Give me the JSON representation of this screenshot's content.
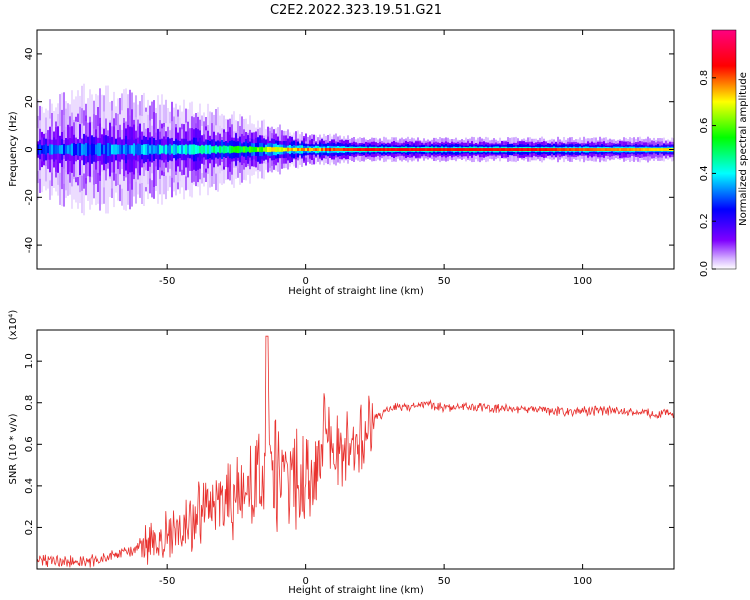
{
  "title": "C2E2.2022.323.19.51.G21",
  "chart_data": [
    {
      "type": "heatmap",
      "xlabel": "Height of straight line (km)",
      "ylabel": "Frequency (Hz)",
      "xlim": [
        -97,
        133
      ],
      "ylim": [
        -50,
        50
      ],
      "xticks": [
        -50,
        0,
        50,
        100
      ],
      "yticks": [
        -40,
        -20,
        0,
        20,
        40
      ],
      "colorbar": {
        "label": "Normalized spectral amplitude",
        "range": [
          0.0,
          1.0
        ],
        "ticks": [
          "0.0",
          "0.2",
          "0.4",
          "0.6",
          "0.8"
        ],
        "colors": [
          "#ffffff",
          "#7f00ff",
          "#0000ff",
          "#00ffff",
          "#00ff00",
          "#ffff00",
          "#ff0000",
          "#ff0080"
        ]
      },
      "ridge": {
        "x": [
          -95,
          -80,
          -60,
          -40,
          -20,
          -10,
          0,
          10,
          20,
          40,
          60,
          80,
          100,
          120,
          133
        ],
        "peak_frequency": [
          0,
          0,
          0,
          0,
          0,
          0,
          0,
          0,
          0,
          0,
          0,
          0,
          0,
          0,
          0
        ],
        "amplitude": [
          0.3,
          0.3,
          0.35,
          0.4,
          0.55,
          0.7,
          0.75,
          0.8,
          0.85,
          0.85,
          0.85,
          0.85,
          0.8,
          0.75,
          0.7
        ],
        "spread_hz": [
          6,
          8,
          7,
          6,
          4,
          3,
          2,
          2,
          1.5,
          1.5,
          1.5,
          1.5,
          1.5,
          1.5,
          1.5
        ]
      }
    },
    {
      "type": "line",
      "xlabel": "Height of straight line (km)",
      "ylabel": "SNR (10 * v/v)",
      "multiplier": "(x10⁴)",
      "xlim": [
        -97,
        133
      ],
      "ylim": [
        0,
        1.15
      ],
      "xticks": [
        -50,
        0,
        50,
        100
      ],
      "yticks": [
        0.2,
        0.4,
        0.6,
        0.8,
        1.0
      ],
      "color": "#e8312e",
      "series": [
        {
          "x": [
            -97,
            -90,
            -80,
            -70,
            -60,
            -50,
            -40,
            -30,
            -25,
            -20,
            -15,
            -14,
            -13,
            -10,
            -5,
            0,
            5,
            8,
            10,
            15,
            20,
            25,
            30,
            35,
            40,
            45,
            50,
            60,
            70,
            80,
            90,
            100,
            110,
            120,
            133
          ],
          "y": [
            0.04,
            0.04,
            0.03,
            0.06,
            0.1,
            0.15,
            0.24,
            0.32,
            0.34,
            0.38,
            0.42,
            1.12,
            0.45,
            0.44,
            0.42,
            0.47,
            0.55,
            0.7,
            0.58,
            0.58,
            0.64,
            0.72,
            0.77,
            0.78,
            0.79,
            0.79,
            0.78,
            0.78,
            0.77,
            0.77,
            0.76,
            0.76,
            0.76,
            0.75,
            0.75
          ]
        }
      ]
    }
  ]
}
